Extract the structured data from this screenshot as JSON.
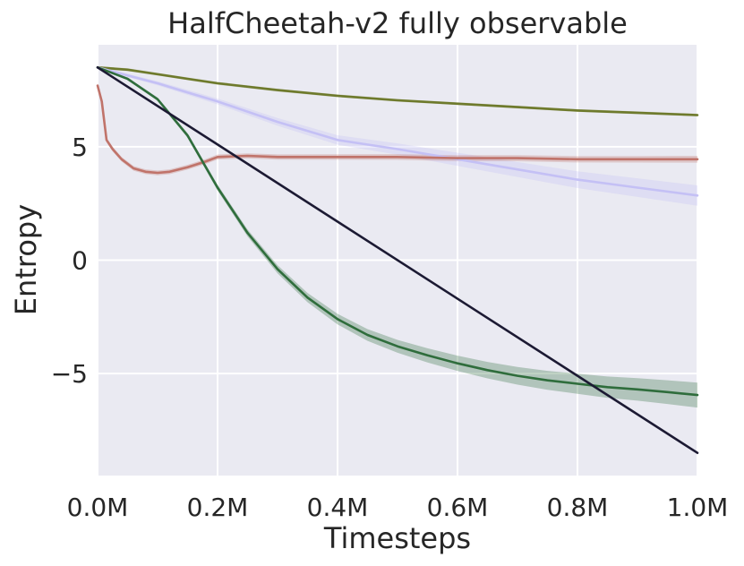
{
  "chart_data": {
    "type": "line",
    "title": "HalfCheetah-v2 fully observable",
    "xlabel": "Timesteps",
    "ylabel": "Entropy",
    "xlim": [
      0,
      1.0
    ],
    "ylim": [
      -9.5,
      9.5
    ],
    "grid": true,
    "x_ticks": [
      0,
      0.2,
      0.4,
      0.6,
      0.8,
      1.0
    ],
    "x_tick_labels": [
      "0.0M",
      "0.2M",
      "0.4M",
      "0.6M",
      "0.8M",
      "1.0M"
    ],
    "y_ticks": [
      -5,
      0,
      5
    ],
    "y_tick_labels": [
      "−5",
      "0",
      "5"
    ],
    "series": [
      {
        "name": "olive",
        "color": "#6e7a2c",
        "band": 0.06,
        "x": [
          0,
          0.05,
          0.1,
          0.15,
          0.2,
          0.3,
          0.4,
          0.5,
          0.6,
          0.7,
          0.8,
          0.9,
          1.0
        ],
        "y": [
          8.5,
          8.4,
          8.2,
          8.0,
          7.8,
          7.5,
          7.25,
          7.05,
          6.9,
          6.75,
          6.6,
          6.5,
          6.4
        ]
      },
      {
        "name": "lavender",
        "color": "#c4c0f5",
        "band_start": 0.05,
        "band_end": 0.45,
        "x": [
          0,
          0.05,
          0.1,
          0.15,
          0.2,
          0.3,
          0.4,
          0.5,
          0.6,
          0.7,
          0.8,
          0.9,
          1.0
        ],
        "y": [
          8.5,
          8.15,
          7.8,
          7.4,
          7.0,
          6.1,
          5.3,
          4.9,
          4.45,
          4.0,
          3.55,
          3.2,
          2.85
        ]
      },
      {
        "name": "salmon",
        "color": "#c0736a",
        "band_start": 0.1,
        "band_end": 0.15,
        "x": [
          0,
          0.007,
          0.015,
          0.025,
          0.04,
          0.06,
          0.08,
          0.1,
          0.12,
          0.15,
          0.18,
          0.2,
          0.25,
          0.3,
          0.4,
          0.5,
          0.6,
          0.7,
          0.8,
          0.9,
          1.0
        ],
        "y": [
          7.7,
          7.0,
          5.3,
          4.9,
          4.45,
          4.05,
          3.9,
          3.85,
          3.9,
          4.1,
          4.35,
          4.55,
          4.6,
          4.55,
          4.55,
          4.55,
          4.5,
          4.5,
          4.45,
          4.45,
          4.45
        ]
      },
      {
        "name": "green",
        "color": "#2f6d3c",
        "band_start": 0.02,
        "band_end": 0.55,
        "x": [
          0,
          0.05,
          0.1,
          0.15,
          0.2,
          0.25,
          0.3,
          0.35,
          0.4,
          0.45,
          0.5,
          0.55,
          0.6,
          0.65,
          0.7,
          0.75,
          0.8,
          0.85,
          0.9,
          0.95,
          1.0
        ],
        "y": [
          8.5,
          8.0,
          7.1,
          5.5,
          3.2,
          1.2,
          -0.4,
          -1.65,
          -2.6,
          -3.3,
          -3.8,
          -4.2,
          -4.55,
          -4.85,
          -5.1,
          -5.3,
          -5.45,
          -5.6,
          -5.7,
          -5.82,
          -5.95
        ]
      },
      {
        "name": "navy",
        "color": "#1c1a33",
        "band": 0,
        "x": [
          0,
          1.0
        ],
        "y": [
          8.5,
          -8.5
        ]
      }
    ]
  }
}
